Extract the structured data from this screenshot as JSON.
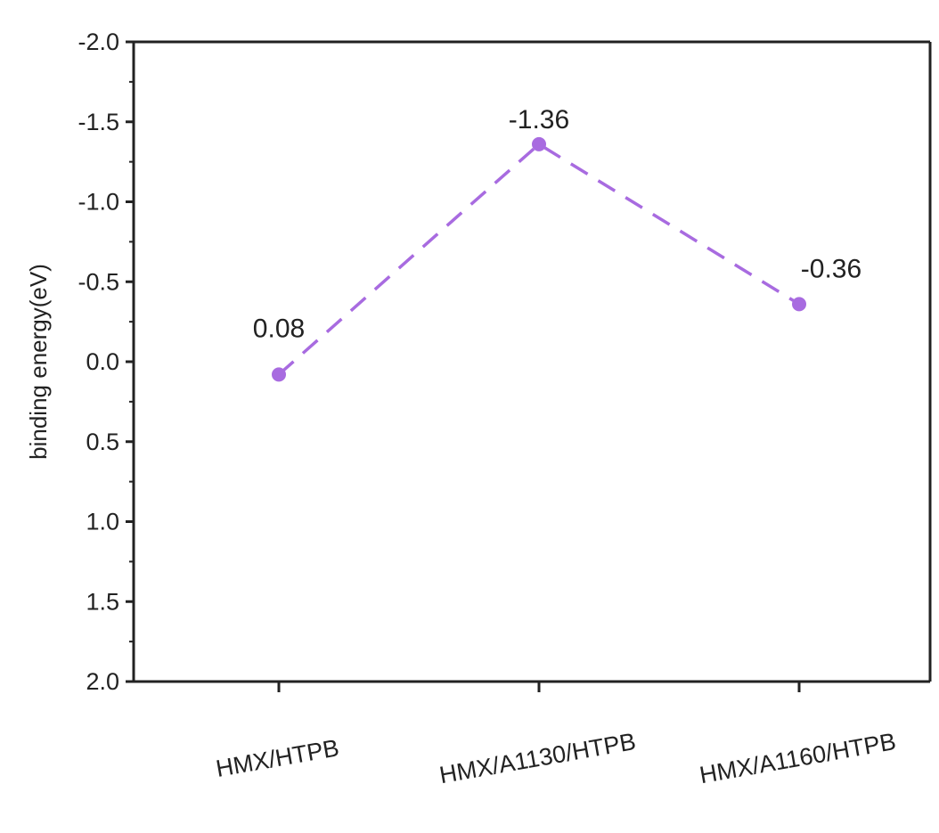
{
  "chart_data": {
    "type": "line",
    "title": "",
    "xlabel": "",
    "ylabel": "binding energy(eV)",
    "categories": [
      "HMX/HTPB",
      "HMX/A1130/HTPB",
      "HMX/A1160/HTPB"
    ],
    "series": [
      {
        "values": [
          0.08,
          -1.36,
          -0.36
        ],
        "data_labels": [
          "0.08",
          "-1.36",
          "-0.36"
        ]
      }
    ],
    "ylim": [
      2.0,
      -2.0
    ],
    "y_axis_inverted": true,
    "yticks": [
      -2.0,
      -1.5,
      -1.0,
      -0.5,
      0.0,
      0.5,
      1.0,
      1.5,
      2.0
    ],
    "ytick_labels": [
      "-2.0",
      "-1.5",
      "-1.0",
      "-0.5",
      "0.0",
      "0.5",
      "1.0",
      "1.5",
      "2.0"
    ],
    "grid": false,
    "legend": "none",
    "line_style": "dashed",
    "marker": "circle",
    "series_color": "#a86be0",
    "axis_color": "#222222"
  }
}
